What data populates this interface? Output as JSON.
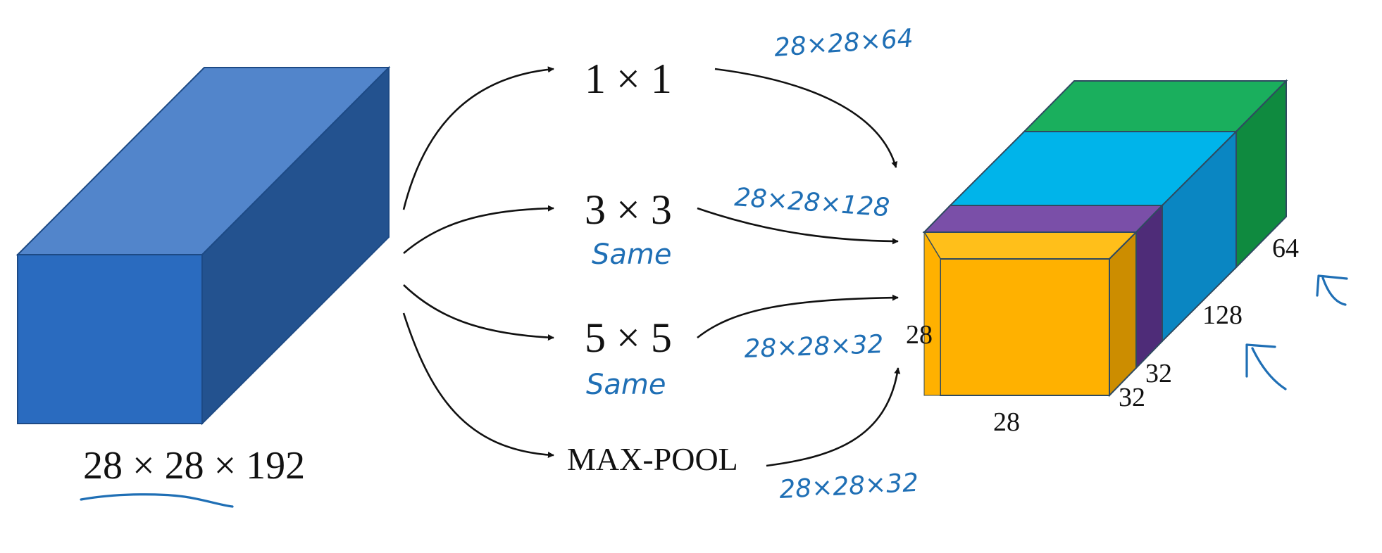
{
  "input_volume": {
    "label": "28 × 28 × 192",
    "colors": {
      "front": "#2a6bbf",
      "top": "#5285cb",
      "side": "#23528f",
      "edge": "#1d4a85"
    }
  },
  "operations": [
    {
      "id": "conv1x1",
      "label": "1 × 1",
      "note": "",
      "output_note": "28×28×64"
    },
    {
      "id": "conv3x3",
      "label": "3 × 3",
      "note": "Same",
      "output_note": "28×28×128"
    },
    {
      "id": "conv5x5",
      "label": "5 × 5",
      "note": "Same",
      "output_note": "28×28×32"
    },
    {
      "id": "maxpool",
      "label": "MAX-POOL",
      "note": "",
      "output_note": "28×28×32"
    }
  ],
  "output_volume": {
    "height_label": "28",
    "width_label": "28",
    "depth_labels": [
      "32",
      "32",
      "128",
      "64"
    ],
    "colors": {
      "green_front": "#1aaf5d",
      "green_side": "#0f8a3f",
      "cyan_front": "#00b4ea",
      "cyan_side": "#0a86c2",
      "purple_top": "#7a4fa8",
      "purple_side": "#4e2c78",
      "orange_front": "#ffb100",
      "orange_top": "#ffbf1a",
      "orange_side": "#cc8d00",
      "edge": "#2f4a60"
    }
  },
  "annotation_color": "#1f6fb5"
}
